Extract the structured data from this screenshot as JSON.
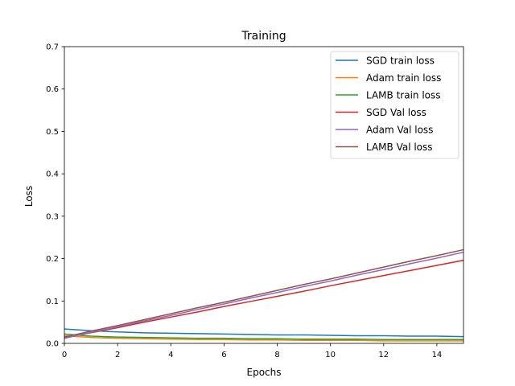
{
  "chart_data": {
    "type": "line",
    "title": "Training",
    "xlabel": "Epochs",
    "ylabel": "Loss",
    "xlim": [
      0,
      15
    ],
    "ylim": [
      0,
      0.7
    ],
    "xticks": [
      0,
      2,
      4,
      6,
      8,
      10,
      12,
      14
    ],
    "yticks": [
      0.0,
      0.1,
      0.2,
      0.3,
      0.4,
      0.5,
      0.6,
      0.7
    ],
    "ytick_labels": [
      "0.0",
      "0.1",
      "0.2",
      "0.3",
      "0.4",
      "0.5",
      "0.6",
      "0.7"
    ],
    "grid": false,
    "legend_position": "top-right",
    "x": [
      0,
      1,
      2,
      3,
      4,
      5,
      6,
      7,
      8,
      9,
      10,
      11,
      12,
      13,
      14,
      15
    ],
    "series": [
      {
        "name": "SGD train loss",
        "color": "#1f77b4",
        "values": [
          0.034,
          0.03,
          0.027,
          0.025,
          0.024,
          0.023,
          0.022,
          0.021,
          0.02,
          0.02,
          0.019,
          0.018,
          0.018,
          0.017,
          0.017,
          0.016
        ]
      },
      {
        "name": "Adam train loss",
        "color": "#ff7f0e",
        "values": [
          0.018,
          0.014,
          0.012,
          0.011,
          0.01,
          0.009,
          0.009,
          0.008,
          0.008,
          0.007,
          0.007,
          0.007,
          0.006,
          0.006,
          0.006,
          0.006
        ]
      },
      {
        "name": "LAMB train loss",
        "color": "#2ca02c",
        "values": [
          0.022,
          0.017,
          0.015,
          0.014,
          0.013,
          0.012,
          0.012,
          0.011,
          0.011,
          0.01,
          0.01,
          0.01,
          0.009,
          0.009,
          0.009,
          0.009
        ]
      },
      {
        "name": "SGD Val loss",
        "color": "#d62728",
        "values": [
          0.013,
          0.025,
          0.037,
          0.05,
          0.062,
          0.074,
          0.087,
          0.099,
          0.111,
          0.123,
          0.136,
          0.148,
          0.16,
          0.172,
          0.184,
          0.196
        ]
      },
      {
        "name": "Adam Val loss",
        "color": "#9467bd",
        "values": [
          0.012,
          0.026,
          0.039,
          0.053,
          0.066,
          0.08,
          0.093,
          0.107,
          0.12,
          0.134,
          0.147,
          0.161,
          0.174,
          0.188,
          0.201,
          0.215
        ]
      },
      {
        "name": "LAMB Val loss",
        "color": "#8c564b",
        "values": [
          0.015,
          0.029,
          0.042,
          0.056,
          0.07,
          0.084,
          0.097,
          0.111,
          0.125,
          0.139,
          0.152,
          0.166,
          0.18,
          0.194,
          0.207,
          0.221
        ]
      }
    ]
  }
}
